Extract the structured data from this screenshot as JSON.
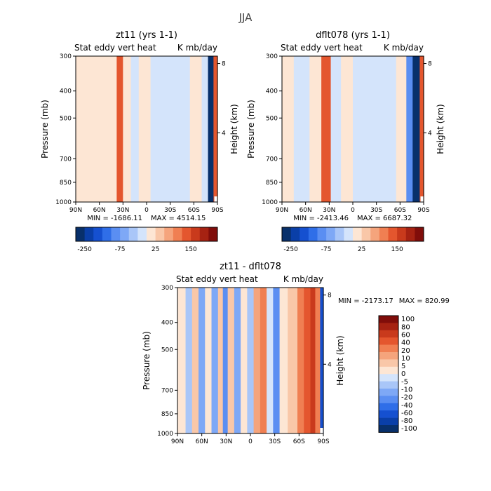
{
  "figure_title": "JJA",
  "colors": {
    "neg": [
      "#08306b",
      "#0a3fa8",
      "#1550d0",
      "#2f6ee8",
      "#5a8ef2",
      "#7ea8f6",
      "#a9c6f8",
      "#d4e4fb"
    ],
    "pos": [
      "#fde6d4",
      "#f9c7a8",
      "#f5a47c",
      "#f07f52",
      "#e4562e",
      "#c93a1c",
      "#a62212",
      "#800d0a"
    ]
  },
  "chart_data": [
    {
      "type": "heatmap",
      "title": "zt11 (yrs 1-1)",
      "subtitle_left": "Stat eddy vert heat",
      "subtitle_right": "K mb/day",
      "xlabel": "",
      "ylabel": "Pressure (mb)",
      "ylabel_right": "Height (km)",
      "x_ticks": [
        "90N",
        "60N",
        "30N",
        "0",
        "30S",
        "60S",
        "90S"
      ],
      "y_ticks": [
        "300",
        "400",
        "500",
        "700",
        "850",
        "1000"
      ],
      "y_ticks_right": [
        "8",
        "4"
      ],
      "min_label": "MIN = -1686.11",
      "max_label": "MAX = 4514.15",
      "colorbar_levels": [
        -250,
        -75,
        25,
        150
      ],
      "colorbar_labels": [
        "-250",
        "-75",
        "25",
        "150"
      ],
      "field": [
        {
          "lat_from": 90,
          "lat_to": 73,
          "value": 5
        },
        {
          "lat_from": 73,
          "lat_to": 48,
          "value": 10
        },
        {
          "lat_from": 48,
          "lat_to": 38,
          "value": 2
        },
        {
          "lat_from": 38,
          "lat_to": 30,
          "value": 55
        },
        {
          "lat_from": 30,
          "lat_to": 20,
          "value": 8
        },
        {
          "lat_from": 20,
          "lat_to": 10,
          "value": -2
        },
        {
          "lat_from": 10,
          "lat_to": -5,
          "value": 4
        },
        {
          "lat_from": -5,
          "lat_to": -25,
          "value": -3
        },
        {
          "lat_from": -25,
          "lat_to": -55,
          "value": -5
        },
        {
          "lat_from": -55,
          "lat_to": -70,
          "value": 6
        },
        {
          "lat_from": -70,
          "lat_to": -78,
          "value": -60
        },
        {
          "lat_from": -78,
          "lat_to": -85,
          "value": -250
        },
        {
          "lat_from": -85,
          "lat_to": -90,
          "value": 80
        }
      ]
    },
    {
      "type": "heatmap",
      "title": "dflt078 (yrs 1-1)",
      "subtitle_left": "Stat eddy vert heat",
      "subtitle_right": "K mb/day",
      "xlabel": "",
      "ylabel": "Pressure (mb)",
      "ylabel_right": "Height (km)",
      "x_ticks": [
        "90N",
        "60N",
        "30N",
        "0",
        "30S",
        "60S",
        "90S"
      ],
      "y_ticks": [
        "300",
        "400",
        "500",
        "700",
        "850",
        "1000"
      ],
      "y_ticks_right": [
        "8",
        "4"
      ],
      "min_label": "MIN = -2413.46",
      "max_label": "MAX = 6687.32",
      "colorbar_levels": [
        -250,
        -75,
        25,
        150
      ],
      "colorbar_labels": [
        "-250",
        "-75",
        "25",
        "150"
      ],
      "field": [
        {
          "lat_from": 90,
          "lat_to": 75,
          "value": 6
        },
        {
          "lat_from": 75,
          "lat_to": 55,
          "value": -6
        },
        {
          "lat_from": 55,
          "lat_to": 40,
          "value": 8
        },
        {
          "lat_from": 40,
          "lat_to": 28,
          "value": 70
        },
        {
          "lat_from": 28,
          "lat_to": 15,
          "value": -8
        },
        {
          "lat_from": 15,
          "lat_to": 0,
          "value": 5
        },
        {
          "lat_from": 0,
          "lat_to": -25,
          "value": -4
        },
        {
          "lat_from": -25,
          "lat_to": -55,
          "value": -6
        },
        {
          "lat_from": -55,
          "lat_to": -68,
          "value": 4
        },
        {
          "lat_from": -68,
          "lat_to": -76,
          "value": -90
        },
        {
          "lat_from": -76,
          "lat_to": -85,
          "value": -250
        },
        {
          "lat_from": -85,
          "lat_to": -90,
          "value": 100
        }
      ]
    },
    {
      "type": "heatmap",
      "title": "zt11 - dflt078",
      "subtitle_left": "Stat eddy vert heat",
      "subtitle_right": "K mb/day",
      "xlabel": "",
      "ylabel": "Pressure (mb)",
      "ylabel_right": "Height (km)",
      "x_ticks": [
        "90N",
        "60N",
        "30N",
        "0",
        "30S",
        "60S",
        "90S"
      ],
      "y_ticks": [
        "300",
        "400",
        "500",
        "700",
        "850",
        "1000"
      ],
      "y_ticks_right": [
        "8",
        "4"
      ],
      "min_label": "MIN = -2173.17",
      "max_label": "MAX = 820.99",
      "colorbar_levels": [
        -100,
        -80,
        -60,
        -40,
        -20,
        -10,
        -5,
        0,
        5,
        10,
        20,
        40,
        60,
        80,
        100
      ],
      "colorbar_labels": [
        "100",
        "80",
        "60",
        "40",
        "20",
        "10",
        "5",
        "0",
        "-5",
        "-10",
        "-20",
        "-40",
        "-60",
        "-80",
        "-100"
      ],
      "field": [
        {
          "lat_from": 90,
          "lat_to": 80,
          "value": 3
        },
        {
          "lat_from": 80,
          "lat_to": 72,
          "value": -8
        },
        {
          "lat_from": 72,
          "lat_to": 64,
          "value": 6
        },
        {
          "lat_from": 64,
          "lat_to": 56,
          "value": -12
        },
        {
          "lat_from": 56,
          "lat_to": 48,
          "value": 4
        },
        {
          "lat_from": 48,
          "lat_to": 40,
          "value": -15
        },
        {
          "lat_from": 40,
          "lat_to": 34,
          "value": 8
        },
        {
          "lat_from": 34,
          "lat_to": 28,
          "value": -25
        },
        {
          "lat_from": 28,
          "lat_to": 20,
          "value": 6
        },
        {
          "lat_from": 20,
          "lat_to": 12,
          "value": -18
        },
        {
          "lat_from": 12,
          "lat_to": 4,
          "value": 5
        },
        {
          "lat_from": 4,
          "lat_to": -4,
          "value": -6
        },
        {
          "lat_from": -4,
          "lat_to": -12,
          "value": 12
        },
        {
          "lat_from": -12,
          "lat_to": -20,
          "value": 30
        },
        {
          "lat_from": -20,
          "lat_to": -28,
          "value": -4
        },
        {
          "lat_from": -28,
          "lat_to": -36,
          "value": -20
        },
        {
          "lat_from": -36,
          "lat_to": -46,
          "value": 4
        },
        {
          "lat_from": -46,
          "lat_to": -58,
          "value": 10
        },
        {
          "lat_from": -58,
          "lat_to": -66,
          "value": 25
        },
        {
          "lat_from": -66,
          "lat_to": -74,
          "value": 50
        },
        {
          "lat_from": -74,
          "lat_to": -80,
          "value": 70
        },
        {
          "lat_from": -80,
          "lat_to": -86,
          "value": 30
        },
        {
          "lat_from": -86,
          "lat_to": -90,
          "value": -60
        }
      ]
    }
  ]
}
